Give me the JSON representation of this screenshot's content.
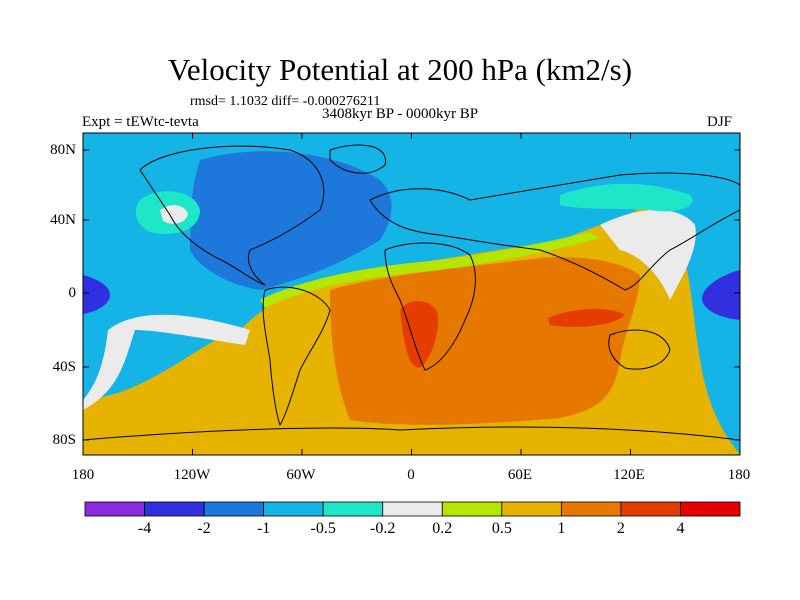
{
  "title": "Velocity Potential at 200 hPa (km2/s)",
  "stats": "rmsd= 1.1032 diff= -0.000276211",
  "period": "3408kyr BP - 0000kyr BP",
  "experiment": "Expt = tEWtc-tevta",
  "season": "DJF",
  "axes": {
    "lat_ticks": [
      "80N",
      "40N",
      "0",
      "40S",
      "80S"
    ],
    "lon_ticks": [
      "180",
      "120W",
      "60W",
      "0",
      "60E",
      "120E",
      "180"
    ]
  },
  "colorbar": {
    "labels": [
      "-4",
      "-2",
      "-1",
      "-0.5",
      "-0.2",
      "0.2",
      "0.5",
      "1",
      "2",
      "4"
    ],
    "colors": [
      "#8a2be2",
      "#3030e0",
      "#1e78dc",
      "#14b4e6",
      "#1ee6c8",
      "#ebebeb",
      "#b4e600",
      "#e6b400",
      "#e67800",
      "#e63c00",
      "#e60000"
    ]
  },
  "map_colors": {
    "c_m2": "#3030e0",
    "c_m1": "#1e78dc",
    "c_m05": "#14b4e6",
    "c_m02": "#1ee6c8",
    "c_0": "#ebebeb",
    "c_p02": "#b4e600",
    "c_p05": "#e6b400",
    "c_p1": "#e67800",
    "c_p2": "#e63c00"
  }
}
